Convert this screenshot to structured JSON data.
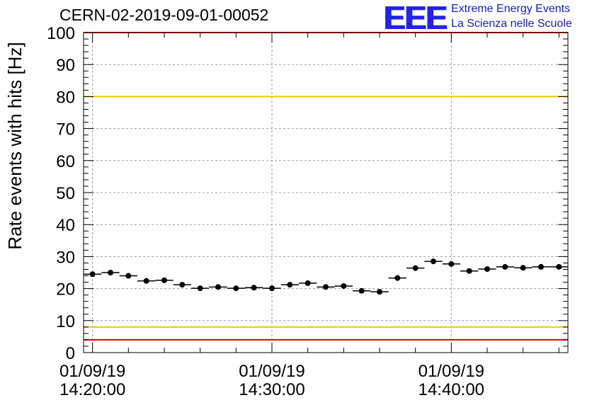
{
  "header": {
    "title": "CERN-02-2019-09-01-00052",
    "logo_mark": "EEE",
    "logo_line1": "Extreme Energy Events",
    "logo_line2": "La Scienza nelle Scuole",
    "logo_color": "#1a1acc"
  },
  "chart_data": {
    "type": "scatter",
    "title": "CERN-02-2019-09-01-00052",
    "xlabel": "",
    "ylabel": "Rate events with hits [Hz]",
    "x_axis_type": "time",
    "xlim_minutes": [
      -0.5,
      26.5
    ],
    "ylim": [
      0,
      100
    ],
    "yticks": [
      0,
      10,
      20,
      30,
      40,
      50,
      60,
      70,
      80,
      90,
      100
    ],
    "xticks": [
      {
        "minute": 0,
        "date": "01/09/19",
        "time": "14:20:00"
      },
      {
        "minute": 10,
        "date": "01/09/19",
        "time": "14:30:00"
      },
      {
        "minute": 20,
        "date": "01/09/19",
        "time": "14:40:00"
      }
    ],
    "grid": true,
    "reference_lines": [
      {
        "y": 100,
        "color": "#ee0000"
      },
      {
        "y": 80,
        "color": "#f0c800"
      },
      {
        "y": 8,
        "color": "#f0c800"
      },
      {
        "y": 4,
        "color": "#ee0000"
      }
    ],
    "marker_color": "#000000",
    "x_bin_half_width": 0.5,
    "series": [
      {
        "x": [
          0,
          1,
          2,
          3,
          4,
          5,
          6,
          7,
          8,
          9,
          10,
          11,
          12,
          13,
          14,
          15,
          16,
          17,
          18,
          19,
          20,
          21,
          22,
          23,
          24,
          25,
          26
        ],
        "values": [
          24.5,
          25.0,
          24.0,
          22.4,
          22.6,
          21.2,
          20.1,
          20.5,
          20.1,
          20.3,
          20.1,
          21.2,
          21.7,
          20.5,
          20.8,
          19.3,
          19.0,
          23.3,
          26.4,
          28.5,
          27.7,
          25.5,
          26.1,
          26.8,
          26.5,
          26.8,
          26.8
        ]
      }
    ]
  }
}
